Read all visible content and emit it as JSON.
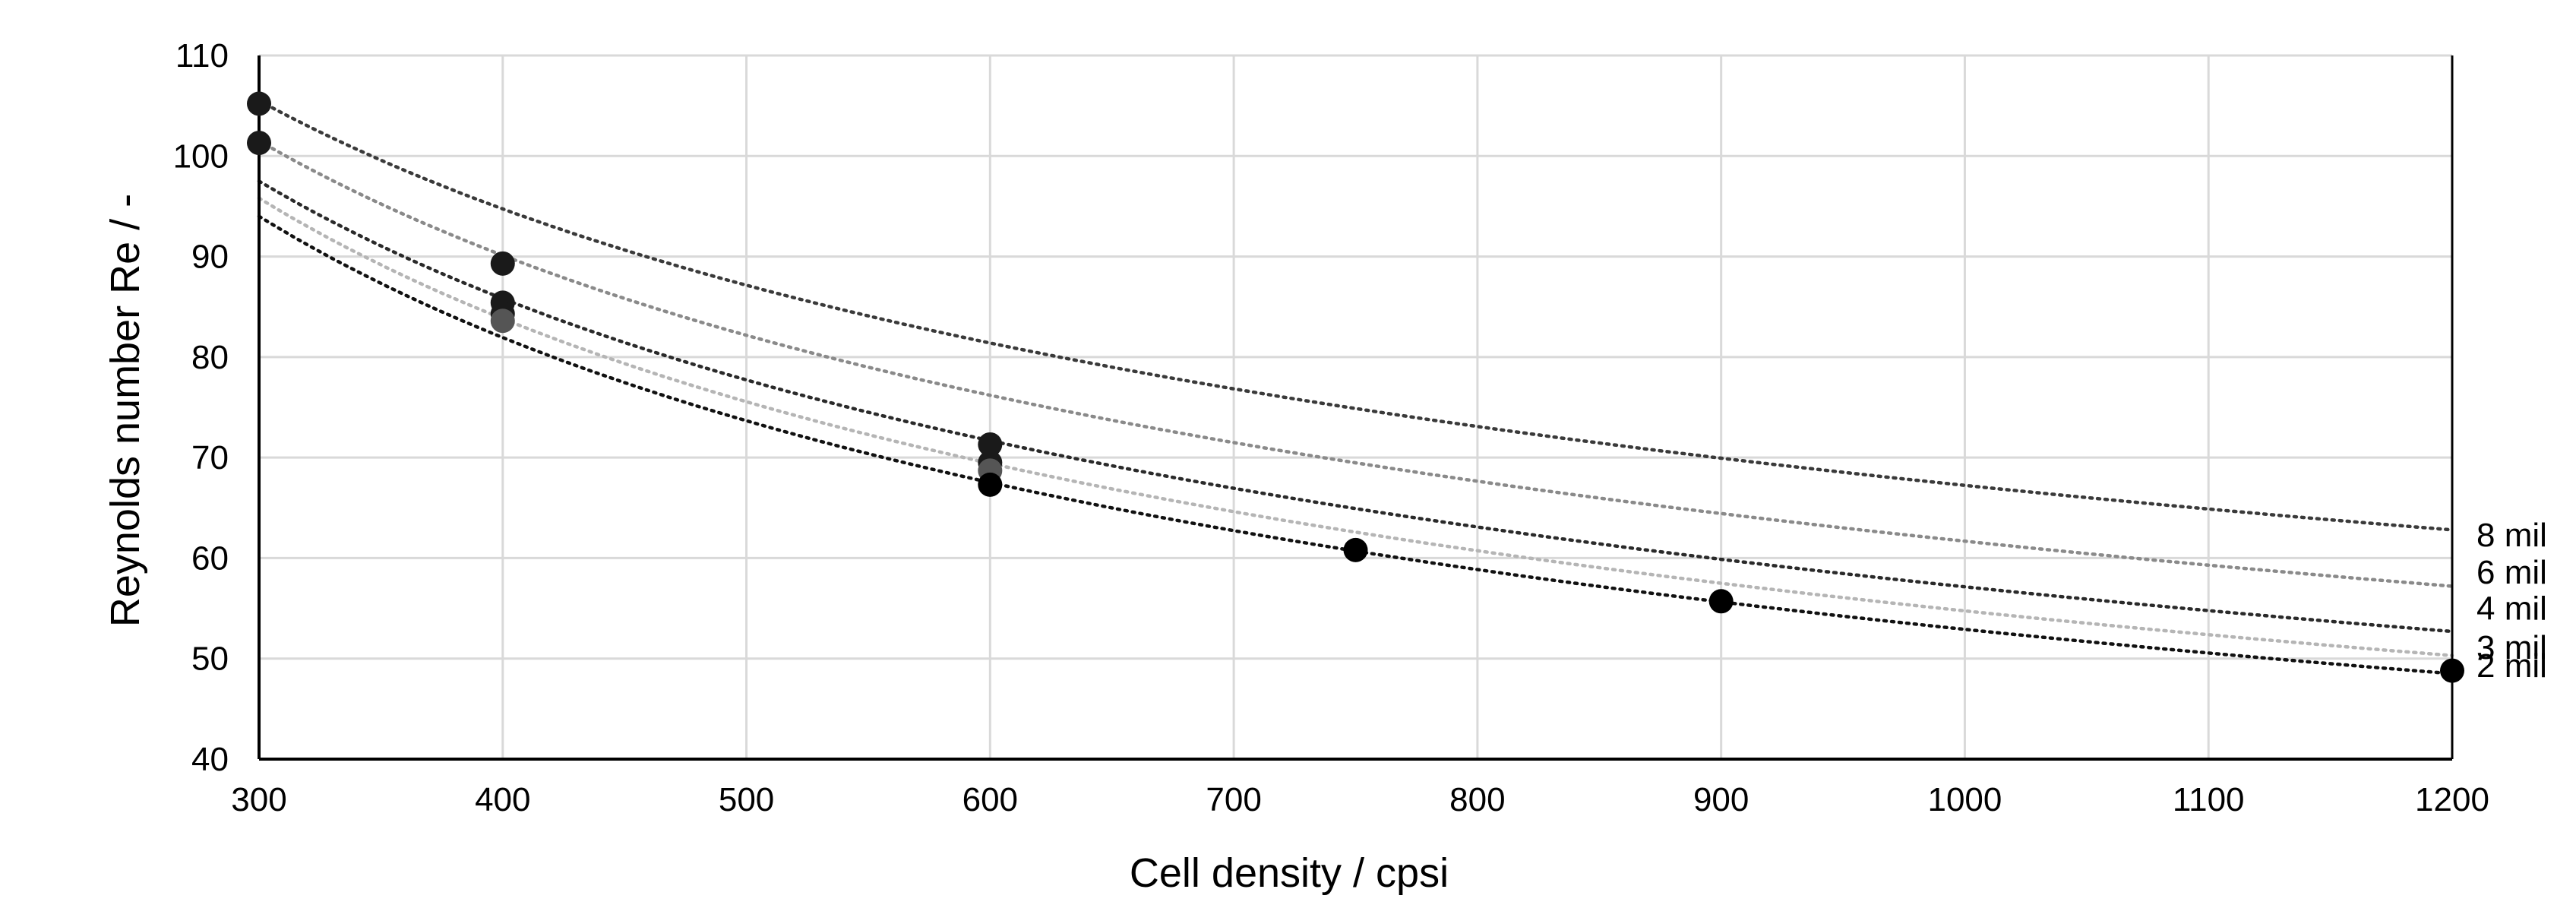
{
  "chart_data": {
    "type": "scatter",
    "title": "",
    "xlabel": "Cell density / cpsi",
    "ylabel": "Reynolds number Re / -",
    "xlim": [
      300,
      1200
    ],
    "ylim": [
      40,
      110
    ],
    "xticks": [
      300,
      400,
      500,
      600,
      700,
      800,
      900,
      1000,
      1100,
      1200
    ],
    "yticks": [
      40,
      50,
      60,
      70,
      80,
      90,
      100,
      110
    ],
    "grid": true,
    "trendline": "power",
    "series": [
      {
        "name": "8 mil",
        "label": "8 mil",
        "color": "#1a1a1a",
        "trend_color": "#3a3a3a",
        "curve": {
          "x": [
            300,
            1200
          ],
          "y": [
            105.5,
            62.8
          ]
        },
        "points": [
          {
            "x": 300,
            "y": 105.2
          },
          {
            "x": 400,
            "y": 89.3
          }
        ]
      },
      {
        "name": "6 mil",
        "label": "6 mil",
        "color": "#1a1a1a",
        "trend_color": "#8a8a8a",
        "curve": {
          "x": [
            300,
            1200
          ],
          "y": [
            101.5,
            57.2
          ]
        },
        "points": [
          {
            "x": 300,
            "y": 101.3
          },
          {
            "x": 400,
            "y": 85.4
          },
          {
            "x": 600,
            "y": 71.3
          }
        ]
      },
      {
        "name": "4 mil",
        "label": "4 mil",
        "color": "#1a1a1a",
        "trend_color": "#2a2a2a",
        "curve": {
          "x": [
            300,
            1200
          ],
          "y": [
            97.5,
            52.7
          ]
        },
        "points": [
          {
            "x": 400,
            "y": 84.3
          },
          {
            "x": 600,
            "y": 69.5
          }
        ]
      },
      {
        "name": "3 mil",
        "label": "3 mil",
        "color": "#555555",
        "trend_color": "#b5b5b5",
        "curve": {
          "x": [
            300,
            1200
          ],
          "y": [
            95.8,
            50.3
          ]
        },
        "points": [
          {
            "x": 400,
            "y": 83.6
          },
          {
            "x": 600,
            "y": 68.7
          }
        ]
      },
      {
        "name": "2 mil",
        "label": "2 mil",
        "color": "#000000",
        "trend_color": "#111111",
        "curve": {
          "x": [
            300,
            1200
          ],
          "y": [
            94.0,
            48.5
          ]
        },
        "points": [
          {
            "x": 600,
            "y": 67.3
          },
          {
            "x": 750,
            "y": 60.8
          },
          {
            "x": 900,
            "y": 55.7
          },
          {
            "x": 1200,
            "y": 48.8
          }
        ]
      }
    ]
  }
}
